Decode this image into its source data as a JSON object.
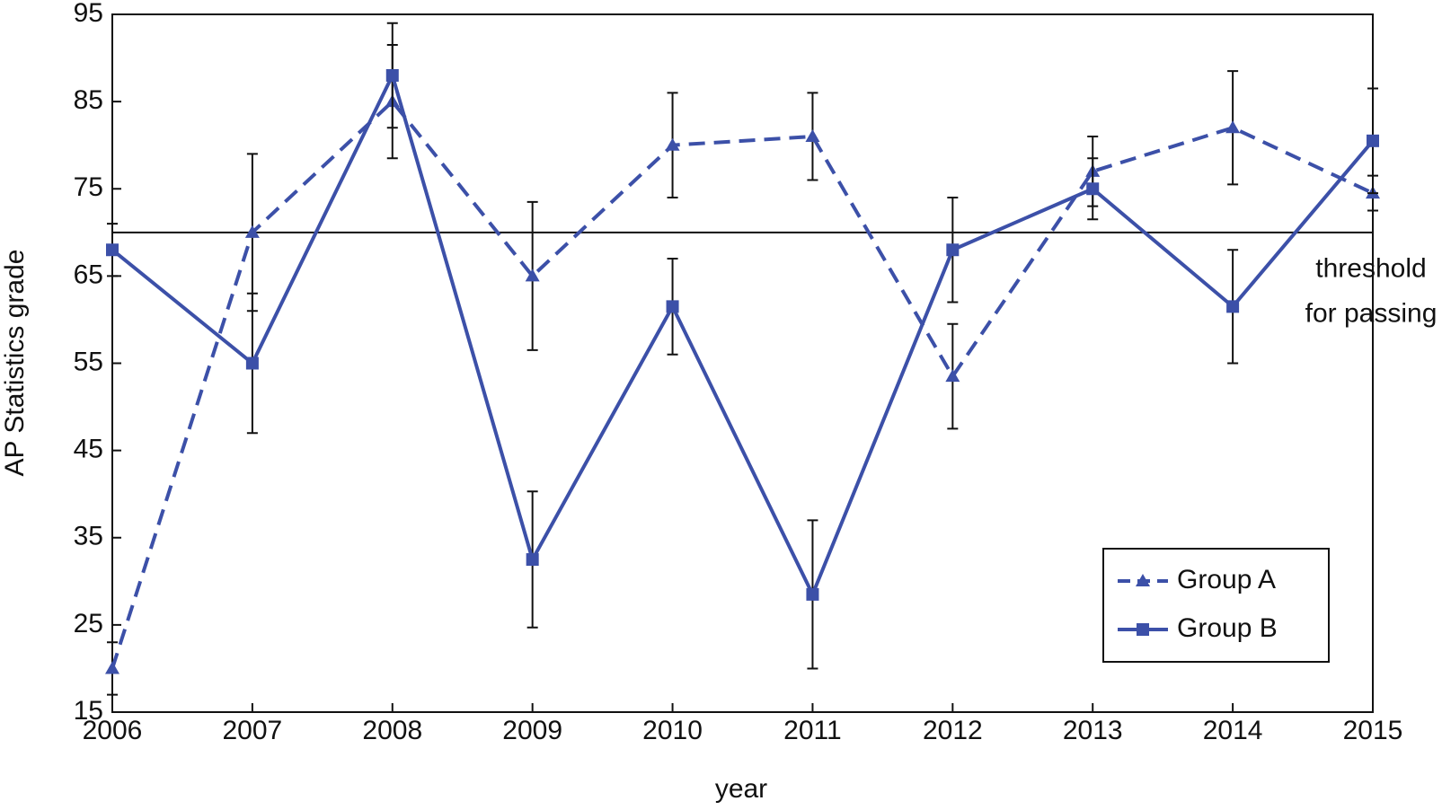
{
  "chart_data": {
    "type": "line",
    "x": [
      2006,
      2007,
      2008,
      2009,
      2010,
      2011,
      2012,
      2013,
      2014,
      2015
    ],
    "series": [
      {
        "name": "Group A",
        "color": "#3c50a8",
        "dashed": true,
        "marker": "triangle",
        "values": [
          20,
          70,
          85,
          65,
          80,
          81,
          53.5,
          77,
          82,
          74.5
        ],
        "errors": [
          3,
          9,
          6.5,
          8.5,
          6,
          5,
          6,
          4,
          6.5,
          2
        ]
      },
      {
        "name": "Group B",
        "color": "#3c50a8",
        "dashed": false,
        "marker": "square",
        "values": [
          68,
          55,
          88,
          32.5,
          61.5,
          28.5,
          68,
          75,
          61.5,
          80.5
        ],
        "errors": [
          3,
          8,
          6,
          7.8,
          5.5,
          8.5,
          6,
          3.5,
          6.5,
          6
        ]
      }
    ],
    "threshold": 70,
    "annotation": [
      "threshold",
      "for passing"
    ],
    "xlabel": "year",
    "ylabel": "AP Statistics grade",
    "xlim": [
      2006,
      2015
    ],
    "xticks": [
      2006,
      2007,
      2008,
      2009,
      2010,
      2011,
      2012,
      2013,
      2014,
      2015
    ],
    "ylim": [
      15,
      95
    ],
    "yticks": [
      15,
      25,
      35,
      45,
      55,
      65,
      75,
      85,
      95
    ],
    "legend": "lower right"
  }
}
